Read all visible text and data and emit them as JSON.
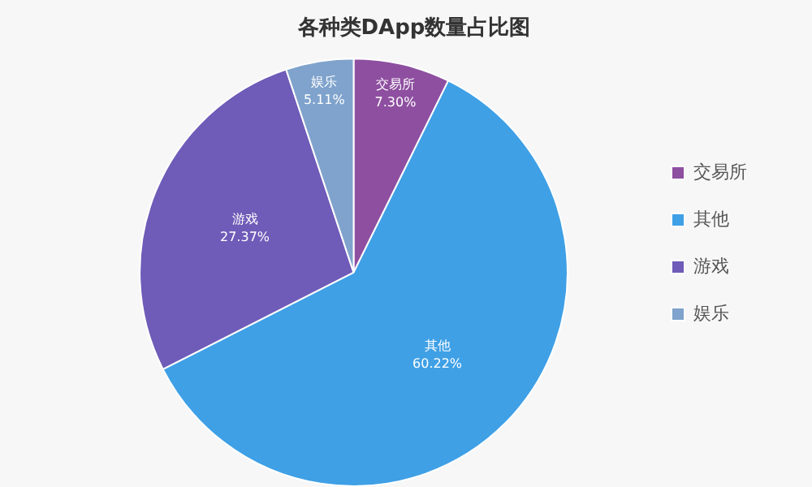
{
  "chart_data": {
    "type": "pie",
    "title": "各种类DApp数量占比图",
    "categories": [
      "交易所",
      "其他",
      "游戏",
      "娱乐"
    ],
    "values": [
      7.3,
      60.22,
      27.37,
      5.11
    ],
    "value_labels": [
      "7.30%",
      "60.22%",
      "27.37%",
      "5.11%"
    ],
    "colors": [
      "#8e4fa0",
      "#3fa0e6",
      "#6f5bb8",
      "#7fa3cc"
    ],
    "legend": "right"
  }
}
